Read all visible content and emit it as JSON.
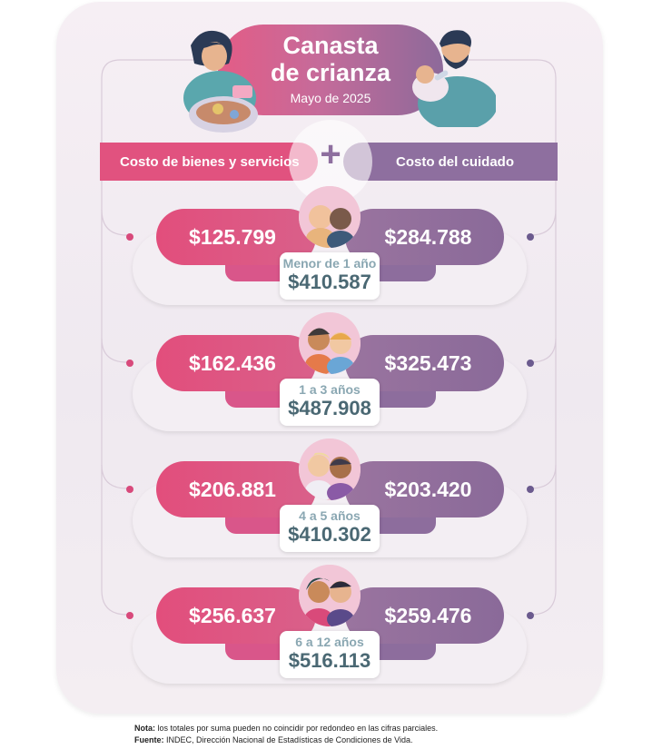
{
  "header": {
    "title_line1": "Canasta",
    "title_line2": "de crianza",
    "subtitle": "Mayo de 2025"
  },
  "columns": {
    "left_label": "Costo de bienes y servicios",
    "operator": "+",
    "right_label": "Costo del cuidado"
  },
  "rows": [
    {
      "age": "Menor de 1 año",
      "goods": "$125.799",
      "care": "$284.788",
      "total": "$410.587"
    },
    {
      "age": "1 a 3 años",
      "goods": "$162.436",
      "care": "$325.473",
      "total": "$487.908"
    },
    {
      "age": "4 a 5 años",
      "goods": "$206.881",
      "care": "$203.420",
      "total": "$410.302"
    },
    {
      "age": "6 a 12 años",
      "goods": "$256.637",
      "care": "$259.476",
      "total": "$516.113"
    }
  ],
  "notes": {
    "note_label": "Nota:",
    "note_text": " los totales por suma pueden no coincidir por redondeo en las cifras parciales.",
    "source_label": "Fuente:",
    "source_text": " INDEC, Dirección Nacional de Estadísticas de Condiciones de Vida."
  },
  "colors": {
    "goods": "#e1527f",
    "care": "#8e6f9f",
    "total_text": "#4a6873",
    "age_text": "#8aa7b2"
  }
}
